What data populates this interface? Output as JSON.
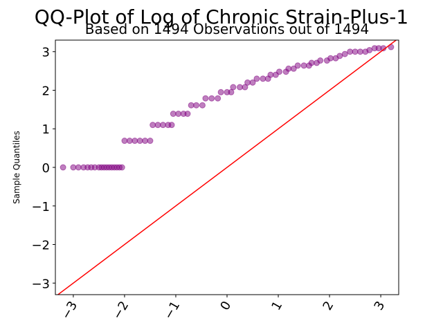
{
  "chart_data": {
    "type": "scatter",
    "title": "QQ-Plot of Log of Chronic Strain-Plus-1",
    "subtitle": "Based on 1494 Observations out of 1494",
    "ylabel": "Sample Quantiles",
    "xlim": [
      -3.35,
      3.35
    ],
    "ylim": [
      -3.3,
      3.3
    ],
    "xticks": [
      {
        "value": -3,
        "label": "−3"
      },
      {
        "value": -2,
        "label": "−2"
      },
      {
        "value": -1,
        "label": "−1"
      },
      0,
      1,
      2,
      3
    ],
    "yticks": [
      {
        "value": -3,
        "label": "−3"
      },
      {
        "value": -2,
        "label": "−2"
      },
      {
        "value": -1,
        "label": "−1"
      },
      0,
      1,
      2,
      3
    ],
    "color": "#800080",
    "x": [
      -3.2,
      -3.0,
      -2.9,
      -2.8,
      -2.72,
      -2.65,
      -2.58,
      -2.5,
      -2.45,
      -2.4,
      -2.35,
      -2.3,
      -2.25,
      -2.2,
      -2.15,
      -2.1,
      -2.05,
      -2.0,
      -1.9,
      -1.8,
      -1.7,
      -1.6,
      -1.5,
      -1.45,
      -1.35,
      -1.25,
      -1.15,
      -1.08,
      -1.05,
      -0.95,
      -0.85,
      -0.77,
      -0.7,
      -0.6,
      -0.48,
      -0.42,
      -0.3,
      -0.18,
      -0.12,
      0,
      0.08,
      0.12,
      0.25,
      0.35,
      0.4,
      0.5,
      0.58,
      0.7,
      0.8,
      0.85,
      0.95,
      1.02,
      1.15,
      1.2,
      1.3,
      1.38,
      1.5,
      1.6,
      1.65,
      1.75,
      1.82,
      1.95,
      2.02,
      2.12,
      2.2,
      2.3,
      2.4,
      2.5,
      2.6,
      2.7,
      2.78,
      2.88,
      2.96,
      3.05,
      3.2
    ],
    "y": [
      0,
      0,
      0,
      0,
      0,
      0,
      0,
      0,
      0,
      0,
      0,
      0,
      0,
      0,
      0,
      0,
      0,
      0.69,
      0.69,
      0.69,
      0.69,
      0.69,
      0.69,
      1.1,
      1.1,
      1.1,
      1.1,
      1.1,
      1.39,
      1.39,
      1.39,
      1.39,
      1.61,
      1.61,
      1.61,
      1.79,
      1.79,
      1.79,
      1.95,
      1.95,
      1.95,
      2.08,
      2.08,
      2.08,
      2.2,
      2.2,
      2.3,
      2.3,
      2.3,
      2.4,
      2.4,
      2.48,
      2.48,
      2.56,
      2.56,
      2.64,
      2.64,
      2.64,
      2.71,
      2.71,
      2.77,
      2.77,
      2.83,
      2.83,
      2.89,
      2.94,
      3.0,
      3.0,
      3.0,
      3.0,
      3.04,
      3.09,
      3.09,
      3.09,
      3.12
    ],
    "reference_line": {
      "x": [
        -3.35,
        3.35
      ],
      "y": [
        -3.35,
        3.35
      ],
      "color": "#ff0000"
    }
  }
}
